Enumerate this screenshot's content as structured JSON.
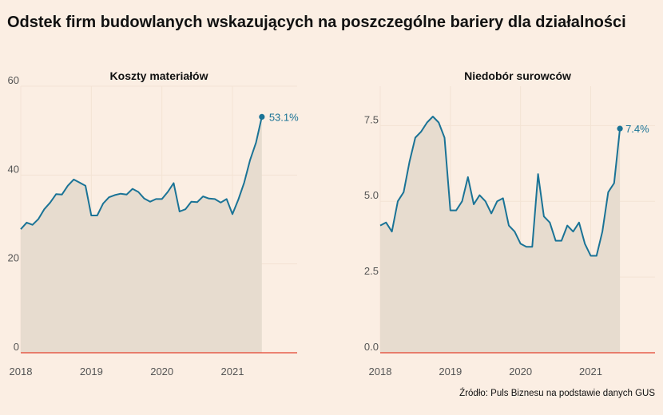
{
  "page": {
    "title": "Odstek firm budowlanych wskazujących na poszczególne bariery dla działalności",
    "source": "Źródło: Puls Biznesu na podstawie danych GUS"
  },
  "colors": {
    "background": "#fbeee3",
    "line": "#1a7396",
    "area": "#e7dccf",
    "zero_line": "#e2422f",
    "grid": "#f3e3d4"
  },
  "chart_data": [
    {
      "type": "area",
      "title": "Koszty materiałów",
      "x_ticks": [
        "2018",
        "2019",
        "2020",
        "2021"
      ],
      "y_ticks": [
        "0",
        "20",
        "40",
        "60"
      ],
      "ylim": [
        0,
        60
      ],
      "xlim": [
        "2018-01",
        "2021-12"
      ],
      "end_label": "53.1%",
      "series": [
        {
          "x": [
            "2018-01",
            "2018-02",
            "2018-03",
            "2018-04",
            "2018-05",
            "2018-06",
            "2018-07",
            "2018-08",
            "2018-09",
            "2018-10",
            "2018-11",
            "2018-12",
            "2019-01",
            "2019-02",
            "2019-03",
            "2019-04",
            "2019-05",
            "2019-06",
            "2019-07",
            "2019-08",
            "2019-09",
            "2019-10",
            "2019-11",
            "2019-12",
            "2020-01",
            "2020-02",
            "2020-03",
            "2020-04",
            "2020-05",
            "2020-06",
            "2020-07",
            "2020-08",
            "2020-09",
            "2020-10",
            "2020-11",
            "2020-12",
            "2021-01",
            "2021-02",
            "2021-03",
            "2021-04",
            "2021-05",
            "2021-06"
          ],
          "values": [
            27.8,
            29.3,
            28.8,
            30.1,
            32.3,
            33.8,
            35.7,
            35.6,
            37.6,
            39.0,
            38.3,
            37.6,
            30.9,
            30.9,
            33.6,
            35.0,
            35.5,
            35.8,
            35.6,
            36.9,
            36.2,
            34.7,
            34.0,
            34.6,
            34.6,
            36.2,
            38.2,
            31.8,
            32.3,
            34.0,
            33.9,
            35.2,
            34.7,
            34.6,
            33.8,
            34.6,
            31.2,
            34.5,
            38.3,
            43.4,
            47.3,
            53.1
          ]
        }
      ]
    },
    {
      "type": "area",
      "title": "Niedobór surowców",
      "x_ticks": [
        "2018",
        "2019",
        "2020",
        "2021"
      ],
      "y_ticks": [
        "0.0",
        "2.5",
        "5.0",
        "7.5"
      ],
      "ylim": [
        0,
        8.8
      ],
      "xlim": [
        "2018-01",
        "2021-12"
      ],
      "end_label": "7.4%",
      "series": [
        {
          "x": [
            "2018-01",
            "2018-02",
            "2018-03",
            "2018-04",
            "2018-05",
            "2018-06",
            "2018-07",
            "2018-08",
            "2018-09",
            "2018-10",
            "2018-11",
            "2018-12",
            "2019-01",
            "2019-02",
            "2019-03",
            "2019-04",
            "2019-05",
            "2019-06",
            "2019-07",
            "2019-08",
            "2019-09",
            "2019-10",
            "2019-11",
            "2019-12",
            "2020-01",
            "2020-02",
            "2020-03",
            "2020-04",
            "2020-05",
            "2020-06",
            "2020-07",
            "2020-08",
            "2020-09",
            "2020-10",
            "2020-11",
            "2020-12",
            "2021-01",
            "2021-02",
            "2021-03",
            "2021-04",
            "2021-05",
            "2021-06"
          ],
          "values": [
            4.2,
            4.3,
            4.0,
            5.0,
            5.3,
            6.3,
            7.1,
            7.3,
            7.6,
            7.8,
            7.6,
            7.1,
            4.7,
            4.7,
            5.0,
            5.8,
            4.9,
            5.2,
            5.0,
            4.6,
            5.0,
            5.1,
            4.2,
            4.0,
            3.6,
            3.5,
            3.5,
            5.9,
            4.5,
            4.3,
            3.7,
            3.7,
            4.2,
            4.0,
            4.3,
            3.6,
            3.2,
            3.2,
            4.0,
            5.3,
            5.6,
            7.4
          ]
        }
      ]
    }
  ]
}
